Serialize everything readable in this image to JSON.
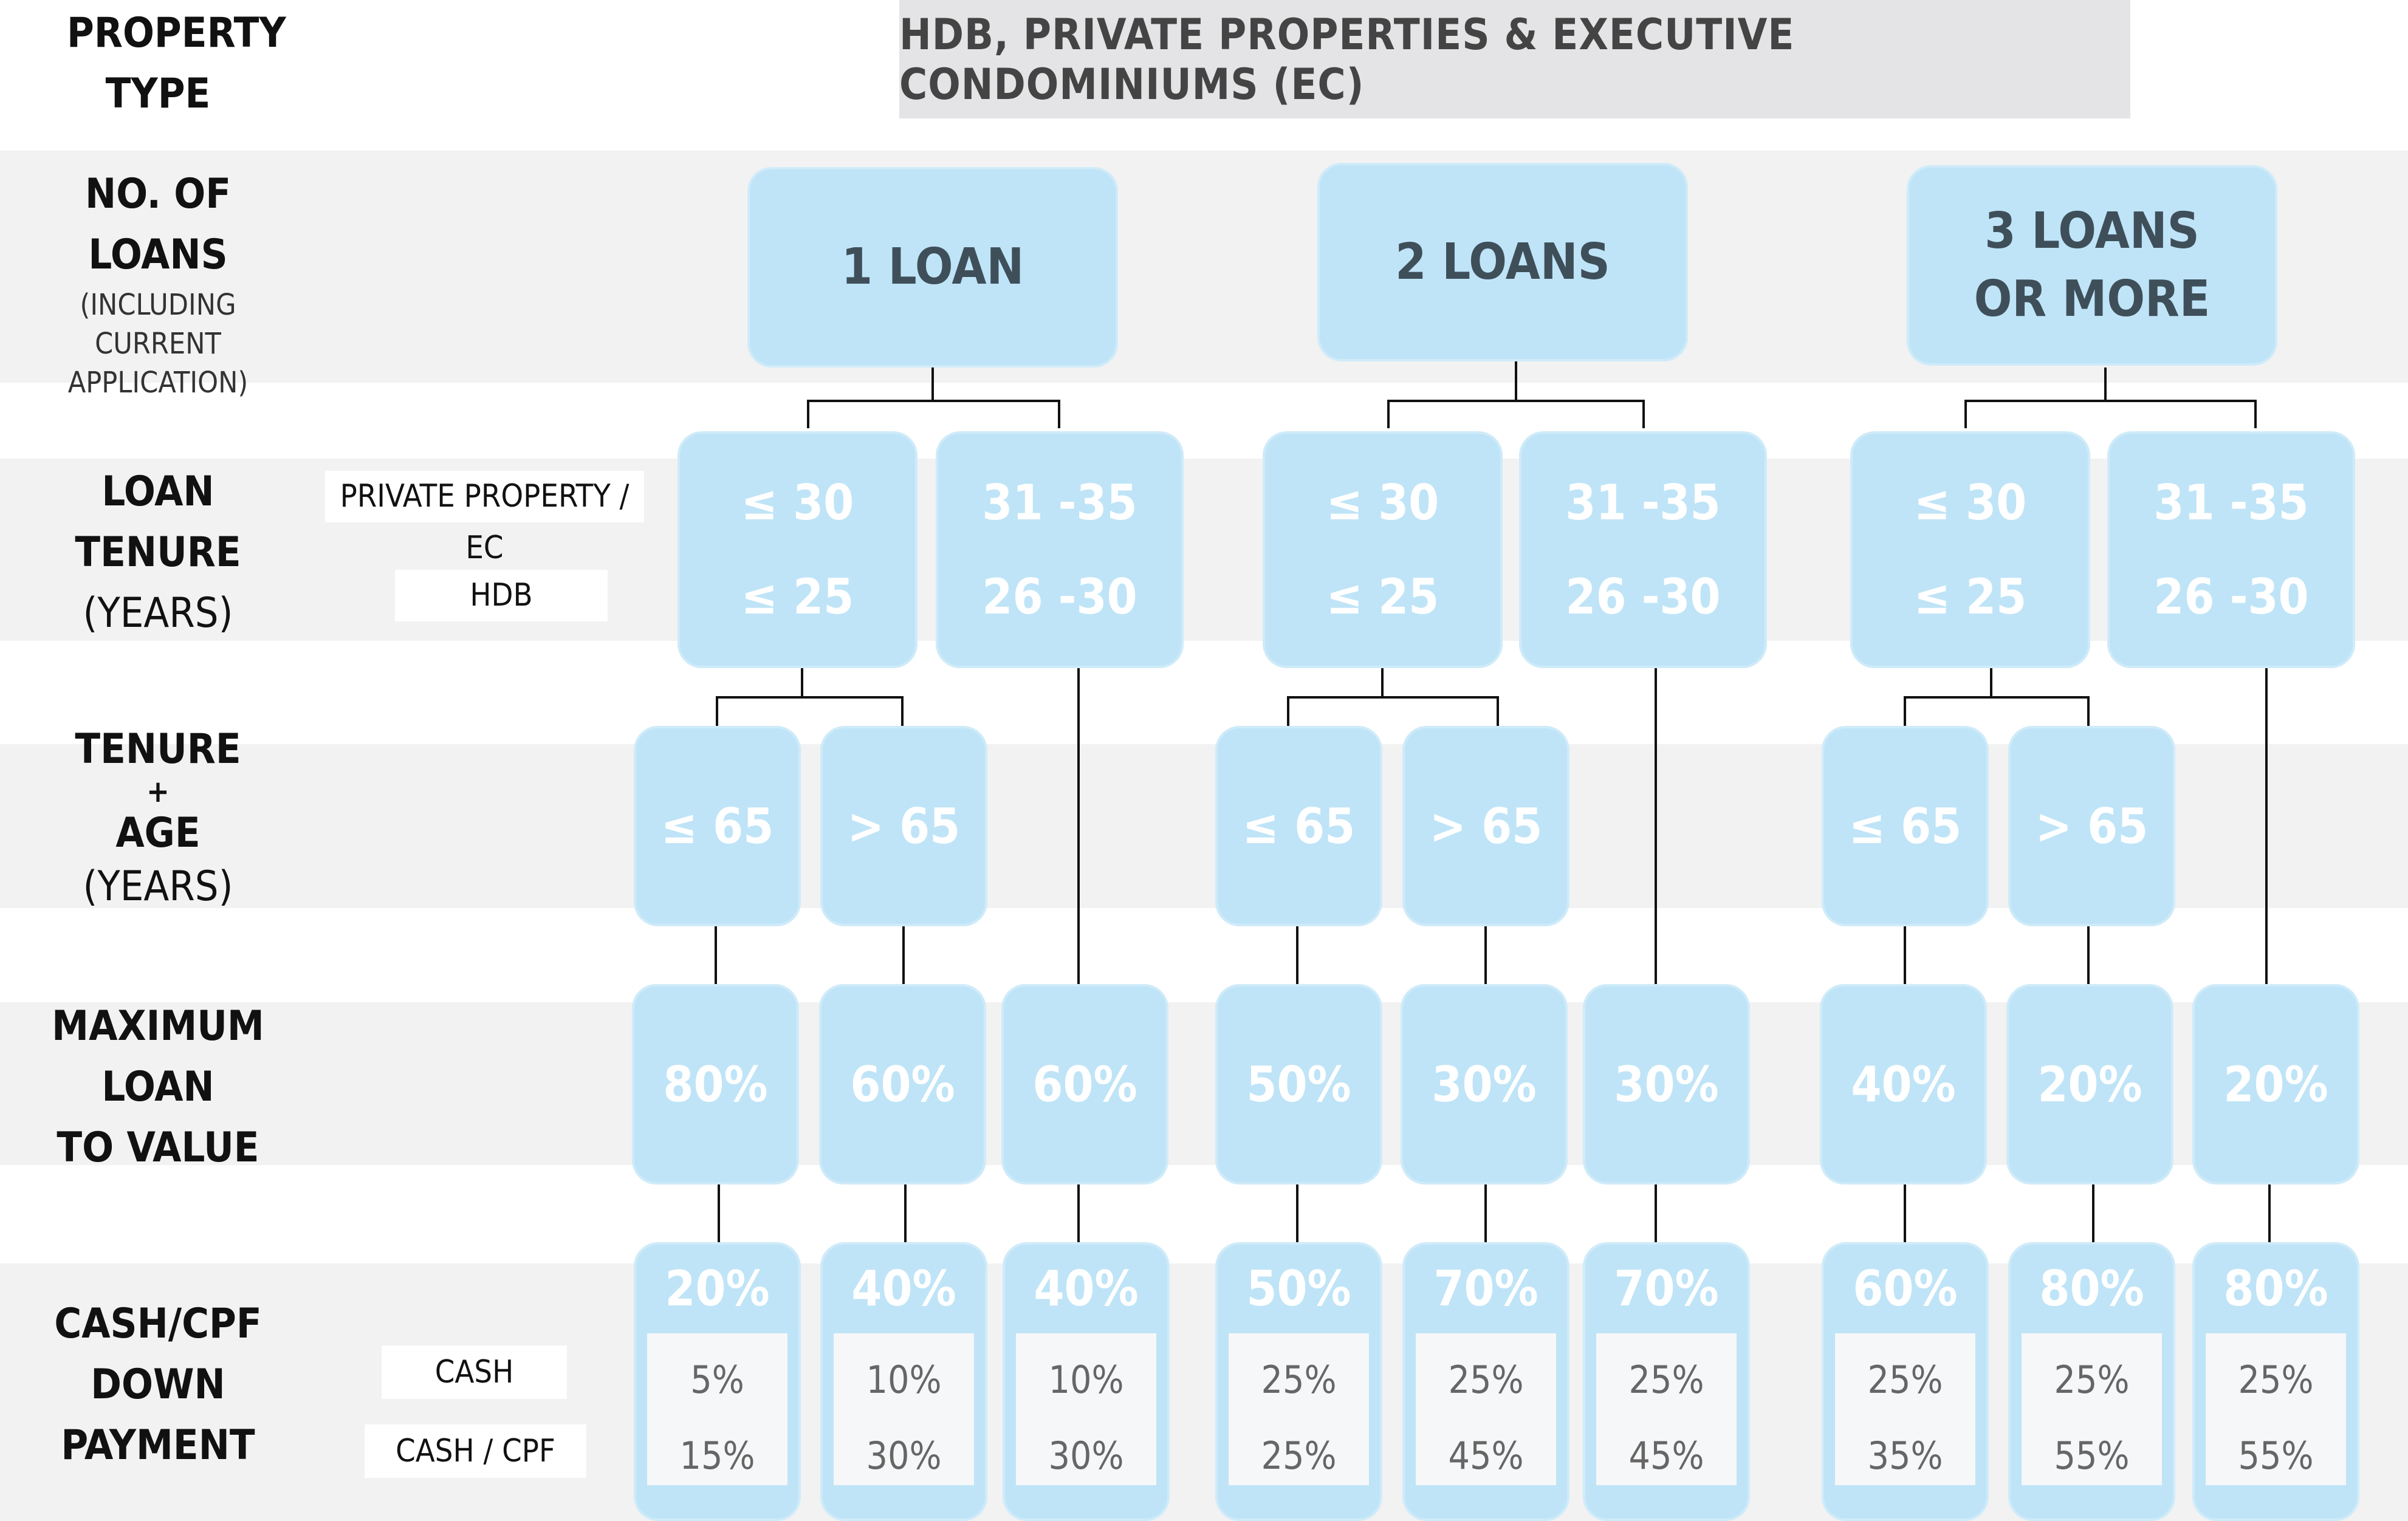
{
  "header": {
    "property_type_label": "PROPERTY TYPE",
    "property_type_value": "HDB, PRIVATE PROPERTIES & EXECUTIVE CONDOMINIUMS (EC)"
  },
  "rows": {
    "loans": {
      "line1": "NO. OF",
      "line2": "LOANS",
      "sub": "(INCLUDING CURRENT APPLICATION)"
    },
    "tenure": {
      "line1": "LOAN",
      "line2": "TENURE",
      "line3": "(YEARS)",
      "side_private": "PRIVATE PROPERTY /  EC",
      "side_hdb": "HDB"
    },
    "age": {
      "line1": "TENURE",
      "line2": "+",
      "line3": "AGE",
      "line4": "(YEARS)"
    },
    "ltv": {
      "line1": "MAXIMUM",
      "line2": "LOAN",
      "line3": "TO VALUE"
    },
    "down": {
      "line1": "CASH/CPF",
      "line2": "DOWN",
      "line3": "PAYMENT",
      "side_cash": "CASH",
      "side_cpf": "CASH / CPF"
    }
  },
  "loan_groups": [
    {
      "label": "1 LOAN"
    },
    {
      "label": "2 LOANS"
    },
    {
      "label_line1": "3 LOANS",
      "label_line2": "OR MORE"
    }
  ],
  "tenure_options": {
    "short_private": "≤ 30",
    "short_hdb": "≤ 25",
    "long_private": "31 -35",
    "long_hdb": "26 -30"
  },
  "age_options": {
    "le": "≤ 65",
    "gt": "> 65"
  },
  "columns": [
    {
      "ltv": "80%",
      "down": "20%",
      "cash": "5%",
      "cpf": "15%"
    },
    {
      "ltv": "60%",
      "down": "40%",
      "cash": "10%",
      "cpf": "30%"
    },
    {
      "ltv": "60%",
      "down": "40%",
      "cash": "10%",
      "cpf": "30%"
    },
    {
      "ltv": "50%",
      "down": "50%",
      "cash": "25%",
      "cpf": "25%"
    },
    {
      "ltv": "30%",
      "down": "70%",
      "cash": "25%",
      "cpf": "45%"
    },
    {
      "ltv": "30%",
      "down": "70%",
      "cash": "25%",
      "cpf": "45%"
    },
    {
      "ltv": "40%",
      "down": "60%",
      "cash": "25%",
      "cpf": "35%"
    },
    {
      "ltv": "20%",
      "down": "80%",
      "cash": "25%",
      "cpf": "55%"
    },
    {
      "ltv": "20%",
      "down": "80%",
      "cash": "25%",
      "cpf": "55%"
    }
  ],
  "colors": {
    "node": "#bfe4f7",
    "band": "#f2f2f3",
    "header_box": "#e4e4e6"
  }
}
